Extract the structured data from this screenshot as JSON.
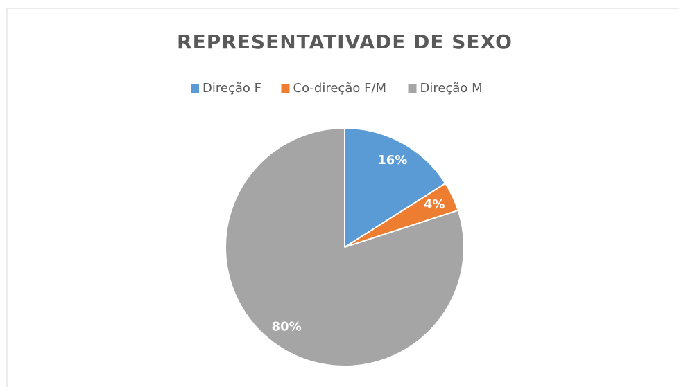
{
  "chart_data": {
    "type": "pie",
    "title": "REPRESENTATIVADE DE SEXO",
    "categories": [
      "Direção F",
      "Co-direção F/M",
      "Direção M"
    ],
    "values": [
      16,
      4,
      80
    ],
    "value_labels": [
      "16%",
      "4%",
      "80%"
    ],
    "colors": [
      "#5b9bd5",
      "#ed7d31",
      "#a5a5a5"
    ],
    "legend": "top"
  }
}
